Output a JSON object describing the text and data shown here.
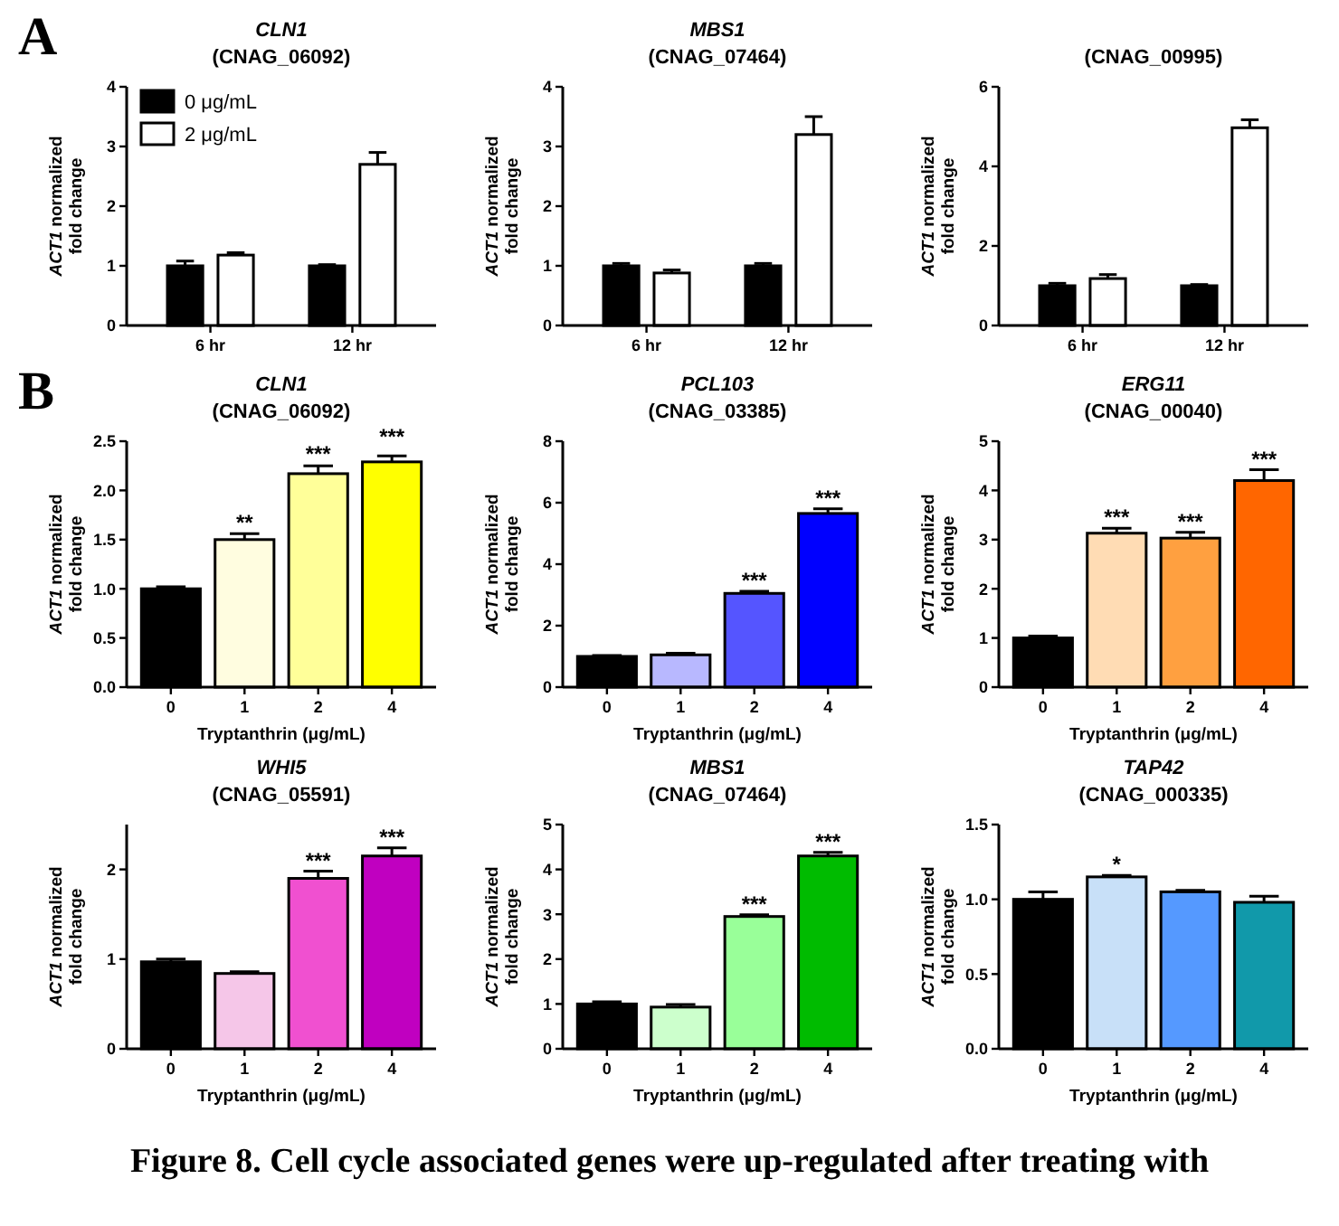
{
  "chart_data": [
    {
      "type": "bar",
      "title": "CLN1",
      "subtitle": "(CNAG_06092)",
      "ylabel": "ACT1 normalized fold change",
      "categories": [
        "6 hr",
        "12 hr"
      ],
      "legend": "top left",
      "ylim": [
        0,
        4
      ],
      "yticks": [
        0,
        1,
        2,
        3,
        4
      ],
      "annotations": [
        "A"
      ],
      "series": [
        {
          "name": "0 μg/mL",
          "color": "#000000",
          "values": [
            1.0,
            1.0
          ],
          "errors": [
            0.08,
            0.02
          ]
        },
        {
          "name": "2 μg/mL",
          "color": "#ffffff",
          "values": [
            1.18,
            2.7
          ],
          "errors": [
            0.04,
            0.2
          ]
        }
      ]
    },
    {
      "type": "bar",
      "title": "MBS1",
      "subtitle": "(CNAG_07464)",
      "ylabel": "ACT1 normalized fold change",
      "categories": [
        "6 hr",
        "12 hr"
      ],
      "ylim": [
        0,
        4
      ],
      "yticks": [
        0,
        1,
        2,
        3,
        4
      ],
      "series": [
        {
          "color": "#000000",
          "values": [
            1.0,
            1.0
          ],
          "errors": [
            0.04,
            0.04
          ]
        },
        {
          "color": "#ffffff",
          "values": [
            0.88,
            3.2
          ],
          "errors": [
            0.05,
            0.3
          ]
        }
      ]
    },
    {
      "type": "bar",
      "subtitle": "(CNAG_00995)",
      "ylabel": "ACT1 normalized fold change",
      "categories": [
        "6 hr",
        "12 hr"
      ],
      "ylim": [
        0,
        6
      ],
      "yticks": [
        0,
        2,
        4,
        6
      ],
      "series": [
        {
          "color": "#000000",
          "values": [
            1.0,
            1.0
          ],
          "errors": [
            0.06,
            0.03
          ]
        },
        {
          "color": "#ffffff",
          "values": [
            1.18,
            4.97
          ],
          "errors": [
            0.1,
            0.2
          ]
        }
      ]
    },
    {
      "type": "bar",
      "title": "CLN1",
      "subtitle": "(CNAG_06092)",
      "ylabel": "ACT1 normalized fold change",
      "xlabel": "Tryptanthrin (μg/mL)",
      "categories": [
        "0",
        "1",
        "2",
        "4"
      ],
      "ylim": [
        0,
        2.5
      ],
      "yticks": [
        {
          "value": 0,
          "label": "0.0"
        },
        {
          "value": 0.5,
          "label": "0.5"
        },
        {
          "value": 1,
          "label": "1.0"
        },
        {
          "value": 1.5,
          "label": "1.5"
        },
        {
          "value": 2,
          "label": "2.0"
        },
        {
          "value": 2.5,
          "label": "2.5"
        }
      ],
      "values": [
        1.0,
        1.5,
        2.17,
        2.29
      ],
      "errors": [
        0.02,
        0.06,
        0.08,
        0.06
      ],
      "colors": [
        "#000000",
        "#fffde0",
        "#ffff99",
        "#ffff00"
      ],
      "annotations": [
        "B",
        {
          "text": "**",
          "x": "1",
          "y": 1.56
        },
        {
          "text": "***",
          "x": "2",
          "y": 2.26
        },
        {
          "text": "***",
          "x": "4",
          "y": 2.44
        }
      ]
    },
    {
      "type": "bar",
      "title": "PCL103",
      "subtitle": "(CNAG_03385)",
      "ylabel": "ACT1 normalized fold change",
      "xlabel": "Tryptanthrin (μg/mL)",
      "categories": [
        "0",
        "1",
        "2",
        "4"
      ],
      "ylim": [
        0,
        8
      ],
      "yticks": [
        0,
        2,
        4,
        6,
        8
      ],
      "values": [
        1.0,
        1.05,
        3.05,
        5.65
      ],
      "errors": [
        0.03,
        0.05,
        0.07,
        0.15
      ],
      "colors": [
        "#000000",
        "#b8b8ff",
        "#5555ff",
        "#0000ff"
      ],
      "annotations": [
        {
          "text": "***",
          "x": "2",
          "y": 3.12
        },
        {
          "text": "***",
          "x": "4",
          "y": 5.8
        }
      ]
    },
    {
      "type": "bar",
      "title": "ERG11",
      "subtitle": "(CNAG_00040)",
      "ylabel": "ACT1 normalized fold change",
      "xlabel": "Tryptanthrin (μg/mL)",
      "categories": [
        "0",
        "1",
        "2",
        "4"
      ],
      "ylim": [
        0,
        5
      ],
      "yticks": [
        0,
        1,
        2,
        3,
        4,
        5
      ],
      "values": [
        1.0,
        3.13,
        3.03,
        4.2
      ],
      "errors": [
        0.04,
        0.1,
        0.12,
        0.22
      ],
      "colors": [
        "#000000",
        "#ffdcb4",
        "#ffa040",
        "#ff6600"
      ],
      "annotations": [
        {
          "text": "***",
          "x": "1",
          "y": 3.23
        },
        {
          "text": "***",
          "x": "2",
          "y": 3.15
        },
        {
          "text": "***",
          "x": "4",
          "y": 4.42
        }
      ]
    },
    {
      "type": "bar",
      "title": "WHI5",
      "subtitle": "(CNAG_05591)",
      "ylabel": "ACT1 normalized fold change",
      "xlabel": "Tryptanthrin (μg/mL)",
      "categories": [
        "0",
        "1",
        "2",
        "4"
      ],
      "ylim": [
        0,
        2.5
      ],
      "yticks": [
        0,
        1,
        2
      ],
      "values": [
        0.97,
        0.84,
        1.9,
        2.15
      ],
      "errors": [
        0.03,
        0.02,
        0.08,
        0.09
      ],
      "colors": [
        "#000000",
        "#f5c6e8",
        "#f050d0",
        "#c000c0"
      ],
      "annotations": [
        {
          "text": "***",
          "x": "2",
          "y": 1.98
        },
        {
          "text": "***",
          "x": "4",
          "y": 2.24
        }
      ]
    },
    {
      "type": "bar",
      "title": "MBS1",
      "subtitle": "(CNAG_07464)",
      "ylabel": "ACT1 normalized fold change",
      "xlabel": "Tryptanthrin (μg/mL)",
      "categories": [
        "0",
        "1",
        "2",
        "4"
      ],
      "ylim": [
        0,
        5
      ],
      "yticks": [
        0,
        1,
        2,
        3,
        4,
        5
      ],
      "values": [
        1.0,
        0.93,
        2.95,
        4.3
      ],
      "errors": [
        0.05,
        0.06,
        0.04,
        0.08
      ],
      "colors": [
        "#000000",
        "#ccffcc",
        "#99ff99",
        "#00bb00"
      ],
      "annotations": [
        {
          "text": "***",
          "x": "2",
          "y": 2.99
        },
        {
          "text": "***",
          "x": "4",
          "y": 4.38
        }
      ]
    },
    {
      "type": "bar",
      "title": "TAP42",
      "subtitle": "(CNAG_000335)",
      "ylabel": "ACT1 normalized fold change",
      "xlabel": "Tryptanthrin (μg/mL)",
      "categories": [
        "0",
        "1",
        "2",
        "4"
      ],
      "ylim": [
        0,
        1.5
      ],
      "yticks": [
        {
          "value": 0,
          "label": "0.0"
        },
        {
          "value": 0.5,
          "label": "0.5"
        },
        {
          "value": 1,
          "label": "1.0"
        },
        {
          "value": 1.5,
          "label": "1.5"
        }
      ],
      "values": [
        1.0,
        1.15,
        1.05,
        0.98
      ],
      "errors": [
        0.05,
        0.01,
        0.01,
        0.04
      ],
      "colors": [
        "#000000",
        "#c8e0f8",
        "#5599ff",
        "#1199aa"
      ],
      "annotations": [
        {
          "text": "*",
          "x": "1",
          "y": 1.16
        }
      ]
    },
    {
      "type": "other",
      "title": "Figure 8. Cell cycle associated genes were up-regulated after treating with"
    }
  ]
}
